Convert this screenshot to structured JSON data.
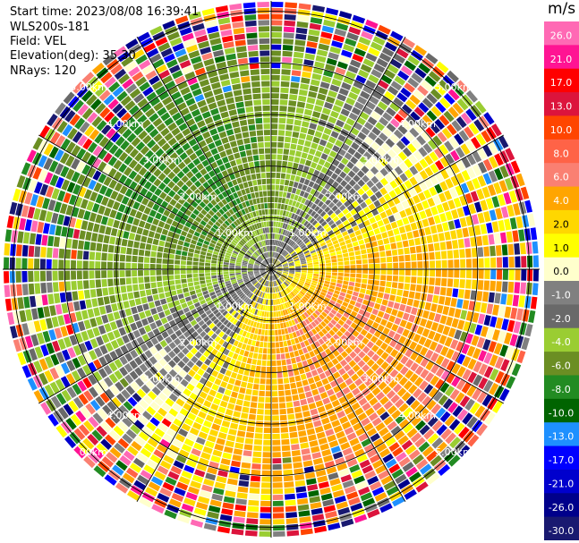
{
  "header": {
    "start_time": "Start time: 2023/08/08 16:39:41",
    "instrument": "WLS200s-181",
    "field": "Field: VEL",
    "elevation": "Elevation(deg): 35.30",
    "nrays": "NRays: 120"
  },
  "chart_data": {
    "type": "heatmap",
    "projection": "polar PPI",
    "instrument": "WLS200s-181",
    "field": "VEL",
    "elevation_deg": 35.3,
    "n_rays": 120,
    "range_rings_km": [
      1.0,
      2.0,
      3.0,
      4.0,
      5.0
    ],
    "range_ring_labels": [
      "1.00km",
      "2.00km",
      "3.00km",
      "4.00km",
      "5.00km"
    ],
    "max_range_km": 5.2,
    "spokes_deg": [
      0,
      30,
      60,
      90,
      120,
      150,
      180,
      210,
      240,
      270,
      300,
      330
    ],
    "colorbar": {
      "unit": "m/s",
      "tick_labels": [
        "26.0",
        "21.0",
        "17.0",
        "13.0",
        "10.0",
        "8.0",
        "6.0",
        "4.0",
        "2.0",
        "1.0",
        "0.0",
        "-1.0",
        "-2.0",
        "-4.0",
        "-6.0",
        "-8.0",
        "-10.0",
        "-13.0",
        "-17.0",
        "-21.0",
        "-26.0",
        "-30.0"
      ],
      "colors": [
        "#ff69b4",
        "#ff1493",
        "#ff0000",
        "#dc143c",
        "#ff4500",
        "#ff6347",
        "#fa8072",
        "#ffa500",
        "#ffd700",
        "#ffff00",
        "#ffffcc",
        "#808080",
        "#696969",
        "#9acd32",
        "#6b8e23",
        "#228b22",
        "#006400",
        "#1e90ff",
        "#0000ff",
        "#0000cd",
        "#00008b",
        "#191970"
      ]
    },
    "observed_pattern": {
      "toward_sector_color": "#228b22",
      "away_sector_color": "#ffa500",
      "near_range_velocity_ms": [
        -6.0,
        6.0
      ],
      "outer_range": "noise"
    }
  }
}
